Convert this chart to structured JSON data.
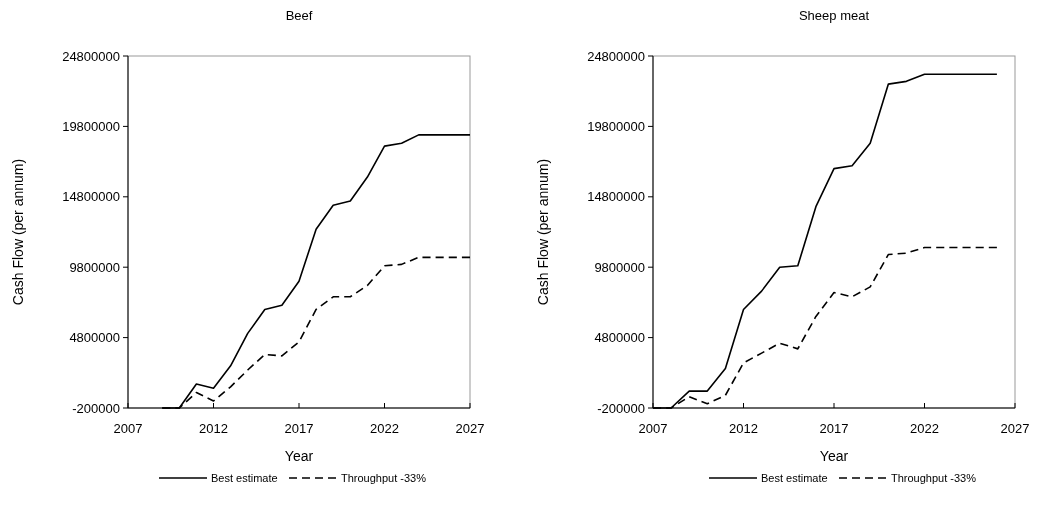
{
  "chart_data": [
    {
      "type": "line",
      "title": "Beef",
      "xlabel": "Year",
      "ylabel": "Cash Flow (per annum)",
      "xlim": [
        2007,
        2027
      ],
      "xticks": [
        2007,
        2012,
        2017,
        2022,
        2027
      ],
      "ylim": [
        -200000,
        24800000
      ],
      "yticks": [
        -200000,
        4800000,
        9800000,
        14800000,
        19800000,
        24800000
      ],
      "legend": "bottom",
      "grid": false,
      "marker": "none",
      "series": [
        {
          "name": "Best estimate",
          "color": "#000000",
          "line_style": "solid",
          "x": [
            2009,
            2010,
            2011,
            2012,
            2013,
            2014,
            2015,
            2016,
            2017,
            2018,
            2019,
            2020,
            2021,
            2022,
            2023,
            2024,
            2025,
            2026,
            2027
          ],
          "values": [
            -200000,
            -200000,
            1500000,
            1200000,
            2800000,
            5100000,
            6800000,
            7100000,
            8800000,
            12500000,
            14200000,
            14500000,
            16200000,
            18400000,
            18600000,
            19200000,
            19200000,
            19200000,
            19200000
          ]
        },
        {
          "name": "Throughput -33%",
          "color": "#000000",
          "line_style": "dashed",
          "x": [
            2009,
            2010,
            2011,
            2012,
            2013,
            2014,
            2015,
            2016,
            2017,
            2018,
            2019,
            2020,
            2021,
            2022,
            2023,
            2024,
            2025,
            2026,
            2027
          ],
          "values": [
            -200000,
            -200000,
            900000,
            300000,
            1300000,
            2500000,
            3600000,
            3500000,
            4500000,
            6800000,
            7700000,
            7700000,
            8500000,
            9900000,
            10000000,
            10500000,
            10500000,
            10500000,
            10500000
          ]
        }
      ]
    },
    {
      "type": "line",
      "title": "Sheep meat",
      "xlabel": "Year",
      "ylabel": "Cash Flow (per annum)",
      "xlim": [
        2007,
        2027
      ],
      "xticks": [
        2007,
        2012,
        2017,
        2022,
        2027
      ],
      "ylim": [
        -200000,
        24800000
      ],
      "yticks": [
        -200000,
        4800000,
        9800000,
        14800000,
        19800000,
        24800000
      ],
      "legend": "bottom",
      "grid": false,
      "marker": "none",
      "series": [
        {
          "name": "Best estimate",
          "color": "#000000",
          "line_style": "solid",
          "x": [
            2007,
            2008,
            2009,
            2010,
            2011,
            2012,
            2013,
            2014,
            2015,
            2016,
            2017,
            2018,
            2019,
            2020,
            2021,
            2022,
            2023,
            2024,
            2025,
            2026
          ],
          "values": [
            -200000,
            -200000,
            1000000,
            1000000,
            2600000,
            6800000,
            8100000,
            9800000,
            9900000,
            14100000,
            16800000,
            17000000,
            18600000,
            22800000,
            23000000,
            23500000,
            23500000,
            23500000,
            23500000,
            23500000
          ]
        },
        {
          "name": "Throughput -33%",
          "color": "#000000",
          "line_style": "dashed",
          "x": [
            2007,
            2008,
            2009,
            2010,
            2011,
            2012,
            2013,
            2014,
            2015,
            2016,
            2017,
            2018,
            2019,
            2020,
            2021,
            2022,
            2023,
            2024,
            2025,
            2026
          ],
          "values": [
            -200000,
            -200000,
            600000,
            100000,
            700000,
            3000000,
            3700000,
            4400000,
            4000000,
            6300000,
            8000000,
            7700000,
            8400000,
            10700000,
            10800000,
            11200000,
            11200000,
            11200000,
            11200000,
            11200000
          ]
        }
      ]
    }
  ]
}
